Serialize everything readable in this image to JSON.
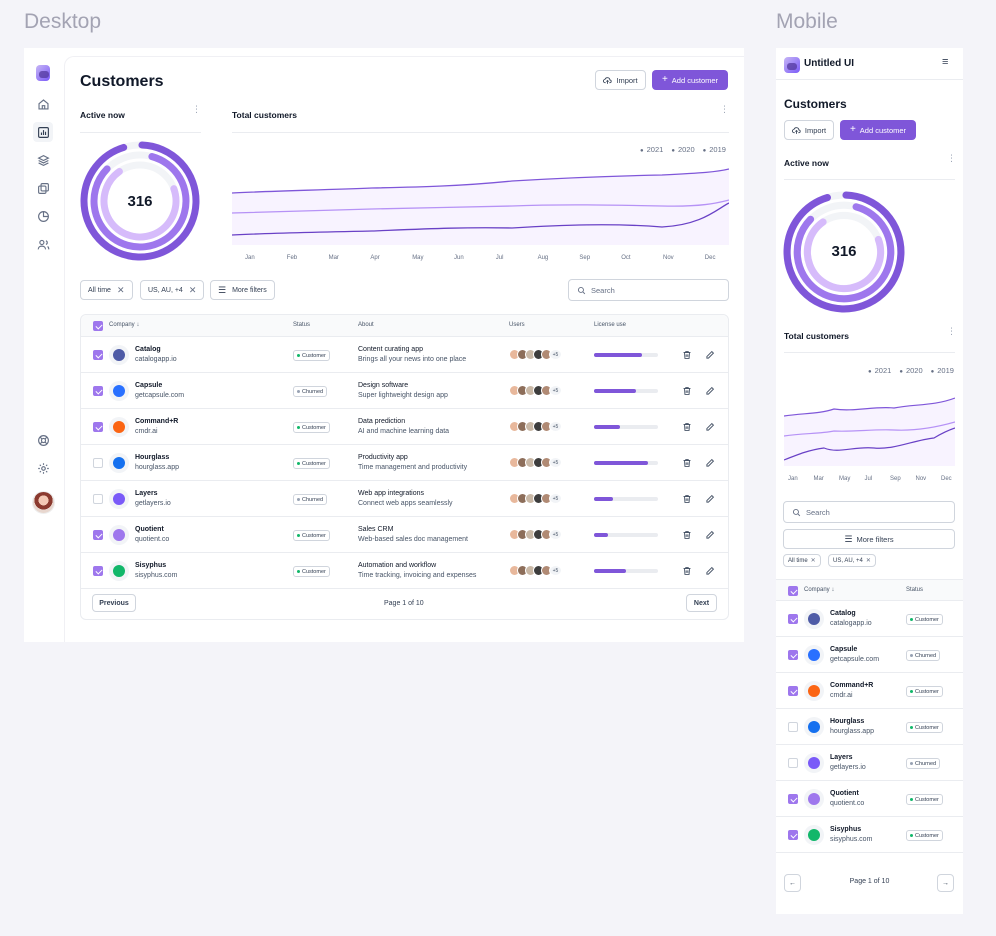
{
  "sections": {
    "desktop": "Desktop",
    "mobile": "Mobile"
  },
  "colors": {
    "accent": "#7f56d9",
    "accent_light": "#b692f6",
    "accent_pale": "#d6bbfb",
    "customer_dot": "#12b76a"
  },
  "desktop": {
    "title": "Customers",
    "import_label": "Import",
    "add_label": "Add customer",
    "active_now": {
      "title": "Active now",
      "value": "316"
    },
    "total_customers": {
      "title": "Total customers",
      "legend": [
        "2021",
        "2020",
        "2019"
      ],
      "months": [
        "Jan",
        "Feb",
        "Mar",
        "Apr",
        "May",
        "Jun",
        "Jul",
        "Aug",
        "Sep",
        "Oct",
        "Nov",
        "Dec"
      ]
    },
    "filters": {
      "time": "All time",
      "region": "US, AU, +4",
      "more": "More filters"
    },
    "search_placeholder": "Search",
    "table": {
      "headers": {
        "company": "Company",
        "status": "Status",
        "about": "About",
        "users": "Users",
        "license": "License use"
      },
      "rows": [
        {
          "name": "Catalog",
          "domain": "catalogapp.io",
          "status": "Customer",
          "about1": "Content curating app",
          "about2": "Brings all your news into one place",
          "more": "+5",
          "license": 0.75,
          "checked": true,
          "logo": "#4e5ba6"
        },
        {
          "name": "Capsule",
          "domain": "getcapsule.com",
          "status": "Churned",
          "about1": "Design software",
          "about2": "Super lightweight design app",
          "more": "+5",
          "license": 0.66,
          "checked": true,
          "logo": "#2970ff"
        },
        {
          "name": "Command+R",
          "domain": "cmdr.ai",
          "status": "Customer",
          "about1": "Data prediction",
          "about2": "AI and machine learning data",
          "more": "+5",
          "license": 0.4,
          "checked": true,
          "logo": "#fb6514"
        },
        {
          "name": "Hourglass",
          "domain": "hourglass.app",
          "status": "Customer",
          "about1": "Productivity app",
          "about2": "Time management and productivity",
          "more": "+5",
          "license": 0.84,
          "checked": false,
          "logo": "#1570ef"
        },
        {
          "name": "Layers",
          "domain": "getlayers.io",
          "status": "Churned",
          "about1": "Web app integrations",
          "about2": "Connect web apps seamlessly",
          "more": "+5",
          "license": 0.3,
          "checked": false,
          "logo": "#7a5af8"
        },
        {
          "name": "Quotient",
          "domain": "quotient.co",
          "status": "Customer",
          "about1": "Sales CRM",
          "about2": "Web-based sales doc management",
          "more": "+5",
          "license": 0.22,
          "checked": true,
          "logo": "#9e77ed"
        },
        {
          "name": "Sisyphus",
          "domain": "sisyphus.com",
          "status": "Customer",
          "about1": "Automation and workflow",
          "about2": "Time tracking, invoicing and expenses",
          "more": "+5",
          "license": 0.5,
          "checked": true,
          "logo": "#12b76a"
        }
      ]
    },
    "pagination": {
      "previous": "Previous",
      "page": "Page 1 of 10",
      "next": "Next"
    }
  },
  "mobile": {
    "app_name": "Untitled UI",
    "title": "Customers",
    "import_label": "Import",
    "add_label": "Add customer",
    "active_now": {
      "title": "Active now",
      "value": "316"
    },
    "total_customers": {
      "title": "Total customers",
      "legend": [
        "2021",
        "2020",
        "2019"
      ],
      "months": [
        "Jan",
        "Mar",
        "May",
        "Jul",
        "Sep",
        "Nov",
        "Dec"
      ]
    },
    "search_placeholder": "Search",
    "more_filters": "More filters",
    "chips": [
      "All time",
      "US, AU, +4"
    ],
    "headers": {
      "company": "Company",
      "status": "Status"
    },
    "page": "Page 1 of 10"
  }
}
